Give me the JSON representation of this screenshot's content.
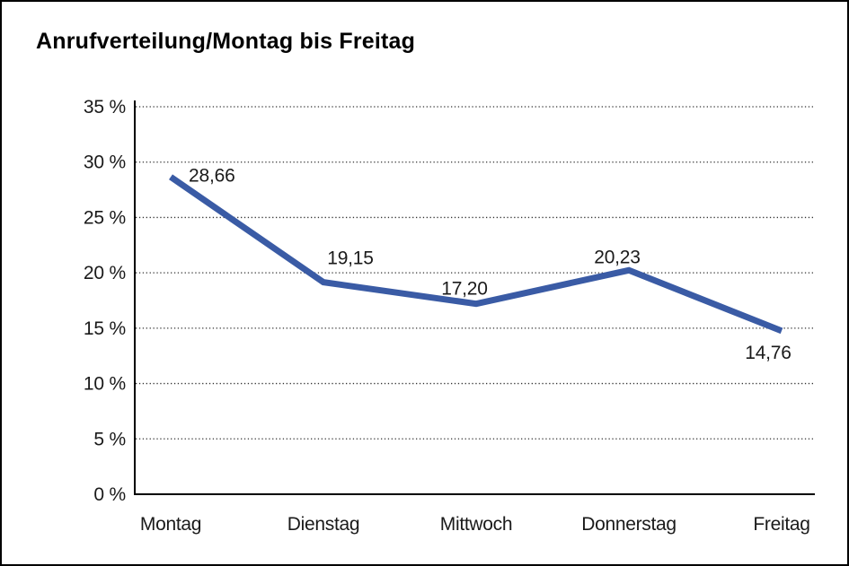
{
  "window": {
    "background": "#ffffff",
    "border_color": "#000000"
  },
  "header": {
    "title": "Anrufverteilung/Montag bis Freitag"
  },
  "chart_data": {
    "type": "line",
    "title": "Anrufverteilung/Montag bis Freitag",
    "categories": [
      "Montag",
      "Dienstag",
      "Mittwoch",
      "Donnerstag",
      "Freitag"
    ],
    "series": [
      {
        "name": "Anrufverteilung",
        "values": [
          28.66,
          19.15,
          17.2,
          20.23,
          14.76
        ],
        "value_labels": [
          "28,66",
          "19,15",
          "17,20",
          "20,23",
          "14,76"
        ],
        "color": "#3A5BA5"
      }
    ],
    "xlabel": "",
    "ylabel": "",
    "ylim": [
      0,
      35
    ],
    "y_ticks": [
      {
        "value": 0,
        "label": "0 %"
      },
      {
        "value": 5,
        "label": "5 %"
      },
      {
        "value": 10,
        "label": "10 %"
      },
      {
        "value": 15,
        "label": "15 %"
      },
      {
        "value": 20,
        "label": "20 %"
      },
      {
        "value": 25,
        "label": "25 %"
      },
      {
        "value": 30,
        "label": "30 %"
      },
      {
        "value": 35,
        "label": "35 %"
      }
    ],
    "grid": "dotted-horizontal",
    "grid_color": "#333333",
    "legend": "none",
    "axis_color": "#000000",
    "text_color": "#1a1a1a"
  }
}
